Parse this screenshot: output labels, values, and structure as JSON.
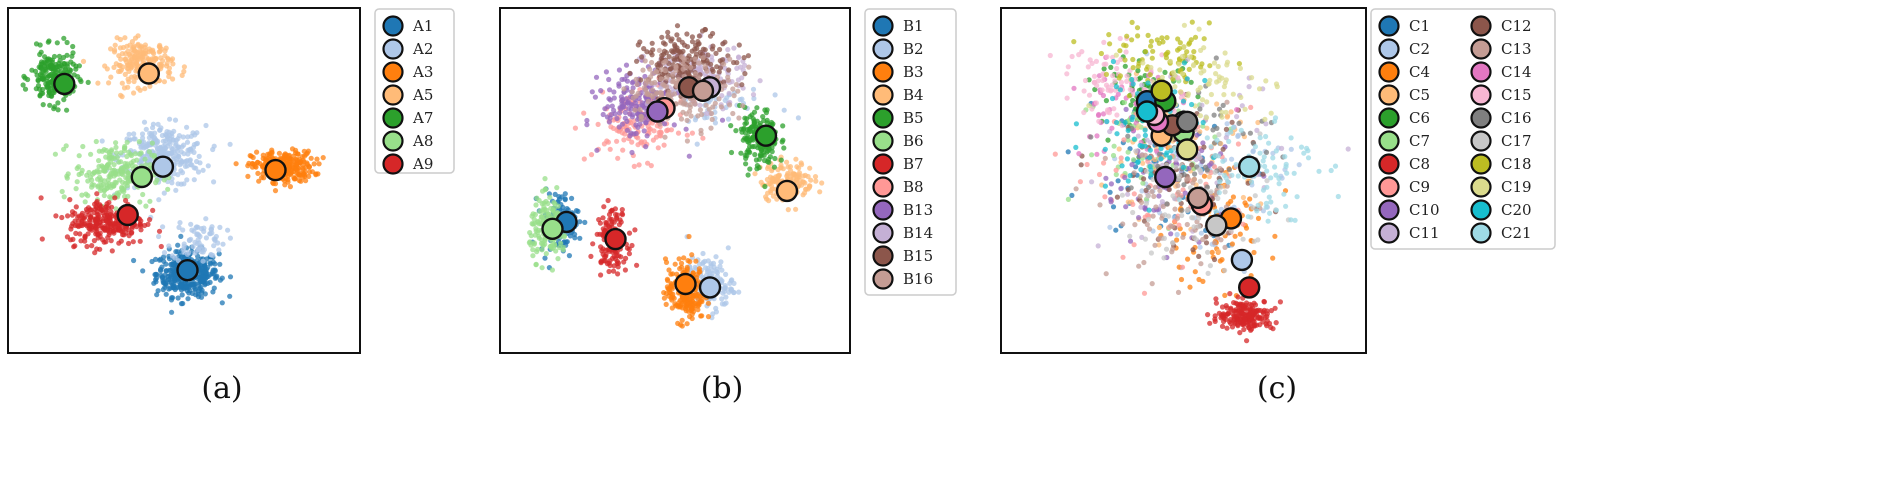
{
  "chart_data": [
    {
      "type": "scatter",
      "panel_label": "(a)",
      "title": "",
      "xlabel": "",
      "ylabel": "",
      "xlim": [
        0,
        100
      ],
      "ylim": [
        0,
        100
      ],
      "grid": false,
      "legend_position": "outside-right",
      "series": [
        {
          "name": "A1",
          "color": "#1f77b4",
          "centroid": [
            51,
            24
          ],
          "clusters": [
            {
              "center": [
                51,
                23
              ],
              "spread": [
                8,
                6
              ],
              "count": 380
            }
          ]
        },
        {
          "name": "A2",
          "color": "#aec7e8",
          "centroid": [
            44,
            54
          ],
          "clusters": [
            {
              "center": [
                44,
                57
              ],
              "spread": [
                11,
                8
              ],
              "count": 300
            },
            {
              "center": [
                54,
                33
              ],
              "spread": [
                7,
                6
              ],
              "count": 70
            }
          ]
        },
        {
          "name": "A3",
          "color": "#ff7f0e",
          "centroid": [
            76,
            53
          ],
          "clusters": [
            {
              "center": [
                78,
                54
              ],
              "spread": [
                8,
                4
              ],
              "count": 260
            }
          ]
        },
        {
          "name": "A5",
          "color": "#ffbb78",
          "centroid": [
            40,
            81
          ],
          "clusters": [
            {
              "center": [
                38,
                84
              ],
              "spread": [
                8,
                6
              ],
              "count": 200
            }
          ]
        },
        {
          "name": "A7",
          "color": "#2ca02c",
          "centroid": [
            16,
            78
          ],
          "clusters": [
            {
              "center": [
                13,
                80
              ],
              "spread": [
                6,
                7
              ],
              "count": 200
            }
          ]
        },
        {
          "name": "A8",
          "color": "#98df8a",
          "centroid": [
            38,
            51
          ],
          "clusters": [
            {
              "center": [
                30,
                52
              ],
              "spread": [
                10,
                8
              ],
              "count": 220
            }
          ]
        },
        {
          "name": "A9",
          "color": "#d62728",
          "centroid": [
            34,
            40
          ],
          "clusters": [
            {
              "center": [
                28,
                38
              ],
              "spread": [
                10,
                6
              ],
              "count": 260
            }
          ]
        }
      ]
    },
    {
      "type": "scatter",
      "panel_label": "(b)",
      "title": "",
      "xlabel": "",
      "ylabel": "",
      "xlim": [
        0,
        100
      ],
      "ylim": [
        0,
        100
      ],
      "grid": false,
      "legend_position": "outside-right",
      "series": [
        {
          "name": "B1",
          "color": "#1f77b4",
          "centroid": [
            19,
            38
          ],
          "clusters": [
            {
              "center": [
                17,
                38
              ],
              "spread": [
                5,
                8
              ],
              "count": 110
            }
          ]
        },
        {
          "name": "B2",
          "color": "#aec7e8",
          "centroid": [
            60,
            19
          ],
          "clusters": [
            {
              "center": [
                60,
                20
              ],
              "spread": [
                6,
                7
              ],
              "count": 140
            },
            {
              "center": [
                58,
                72
              ],
              "spread": [
                15,
                7
              ],
              "count": 60
            }
          ]
        },
        {
          "name": "B3",
          "color": "#ff7f0e",
          "centroid": [
            53,
            20
          ],
          "clusters": [
            {
              "center": [
                53,
                18
              ],
              "spread": [
                5,
                8
              ],
              "count": 220
            }
          ]
        },
        {
          "name": "B4",
          "color": "#ffbb78",
          "centroid": [
            82,
            47
          ],
          "clusters": [
            {
              "center": [
                82,
                50
              ],
              "spread": [
                7,
                5
              ],
              "count": 150
            }
          ]
        },
        {
          "name": "B5",
          "color": "#2ca02c",
          "centroid": [
            76,
            63
          ],
          "clusters": [
            {
              "center": [
                74,
                62
              ],
              "spread": [
                5,
                8
              ],
              "count": 170
            }
          ]
        },
        {
          "name": "B6",
          "color": "#98df8a",
          "centroid": [
            15,
            36
          ],
          "clusters": [
            {
              "center": [
                14,
                36
              ],
              "spread": [
                5,
                8
              ],
              "count": 170
            }
          ]
        },
        {
          "name": "B7",
          "color": "#d62728",
          "centroid": [
            33,
            33
          ],
          "clusters": [
            {
              "center": [
                32,
                33
              ],
              "spread": [
                4,
                8
              ],
              "count": 150
            }
          ]
        },
        {
          "name": "B8",
          "color": "#ff9896",
          "centroid": [
            47,
            71
          ],
          "clusters": [
            {
              "center": [
                40,
                66
              ],
              "spread": [
                12,
                9
              ],
              "count": 140
            }
          ]
        },
        {
          "name": "B13",
          "color": "#9467bd",
          "centroid": [
            45,
            70
          ],
          "clusters": [
            {
              "center": [
                40,
                72
              ],
              "spread": [
                10,
                9
              ],
              "count": 200
            }
          ]
        },
        {
          "name": "B14",
          "color": "#c5b0d5",
          "centroid": [
            60,
            77
          ],
          "clusters": [
            {
              "center": [
                56,
                80
              ],
              "spread": [
                13,
                8
              ],
              "count": 140
            }
          ]
        },
        {
          "name": "B15",
          "color": "#8c564b",
          "centroid": [
            54,
            77
          ],
          "clusters": [
            {
              "center": [
                54,
                84
              ],
              "spread": [
                12,
                8
              ],
              "count": 200
            }
          ]
        },
        {
          "name": "B16",
          "color": "#c49c94",
          "centroid": [
            58,
            76
          ],
          "clusters": [
            {
              "center": [
                52,
                76
              ],
              "spread": [
                14,
                9
              ],
              "count": 180
            }
          ]
        }
      ]
    },
    {
      "type": "scatter",
      "panel_label": "(c)",
      "title": "",
      "xlabel": "",
      "ylabel": "",
      "xlim": [
        0,
        100
      ],
      "ylim": [
        0,
        100
      ],
      "grid": false,
      "legend_position": "outside-right",
      "series": [
        {
          "name": "C1",
          "color": "#1f77b4",
          "centroid": [
            40,
            73
          ],
          "clusters": [
            {
              "center": [
                45,
                55
              ],
              "spread": [
                20,
                20
              ],
              "count": 60
            }
          ]
        },
        {
          "name": "C2",
          "color": "#aec7e8",
          "centroid": [
            66,
            27
          ],
          "clusters": [
            {
              "center": [
                55,
                50
              ],
              "spread": [
                22,
                22
              ],
              "count": 70
            }
          ]
        },
        {
          "name": "C4",
          "color": "#ff7f0e",
          "centroid": [
            63,
            39
          ],
          "clusters": [
            {
              "center": [
                58,
                36
              ],
              "spread": [
                15,
                15
              ],
              "count": 90
            }
          ]
        },
        {
          "name": "C5",
          "color": "#ffbb78",
          "centroid": [
            44,
            63
          ],
          "clusters": [
            {
              "center": [
                48,
                55
              ],
              "spread": [
                20,
                18
              ],
              "count": 80
            }
          ]
        },
        {
          "name": "C6",
          "color": "#2ca02c",
          "centroid": [
            45,
            73
          ],
          "clusters": [
            {
              "center": [
                40,
                75
              ],
              "spread": [
                12,
                10
              ],
              "count": 70
            }
          ]
        },
        {
          "name": "C7",
          "color": "#98df8a",
          "centroid": [
            50,
            64
          ],
          "clusters": [
            {
              "center": [
                42,
                62
              ],
              "spread": [
                18,
                18
              ],
              "count": 70
            }
          ]
        },
        {
          "name": "C8",
          "color": "#d62728",
          "centroid": [
            68,
            19
          ],
          "clusters": [
            {
              "center": [
                67,
                11
              ],
              "spread": [
                7,
                4
              ],
              "count": 190
            }
          ]
        },
        {
          "name": "C9",
          "color": "#ff9896",
          "centroid": [
            55,
            43
          ],
          "clusters": [
            {
              "center": [
                48,
                48
              ],
              "spread": [
                20,
                20
              ],
              "count": 60
            }
          ]
        },
        {
          "name": "C10",
          "color": "#9467bd",
          "centroid": [
            45,
            51
          ],
          "clusters": [
            {
              "center": [
                45,
                52
              ],
              "spread": [
                18,
                18
              ],
              "count": 60
            }
          ]
        },
        {
          "name": "C11",
          "color": "#c5b0d5",
          "centroid": [
            50,
            67
          ],
          "clusters": [
            {
              "center": [
                52,
                55
              ],
              "spread": [
                22,
                22
              ],
              "count": 60
            }
          ]
        },
        {
          "name": "C12",
          "color": "#8c564b",
          "centroid": [
            47,
            66
          ],
          "clusters": [
            {
              "center": [
                50,
                50
              ],
              "spread": [
                20,
                20
              ],
              "count": 70
            }
          ]
        },
        {
          "name": "C13",
          "color": "#c49c94",
          "centroid": [
            54,
            45
          ],
          "clusters": [
            {
              "center": [
                50,
                40
              ],
              "spread": [
                18,
                18
              ],
              "count": 90
            }
          ]
        },
        {
          "name": "C14",
          "color": "#e377c2",
          "centroid": [
            43,
            67
          ],
          "clusters": [
            {
              "center": [
                35,
                70
              ],
              "spread": [
                15,
                12
              ],
              "count": 60
            }
          ]
        },
        {
          "name": "C15",
          "color": "#f7b6d2",
          "centroid": [
            42,
            69
          ],
          "clusters": [
            {
              "center": [
                32,
                78
              ],
              "spread": [
                15,
                10
              ],
              "count": 80
            }
          ]
        },
        {
          "name": "C16",
          "color": "#7f7f7f",
          "centroid": [
            51,
            67
          ],
          "clusters": [
            {
              "center": [
                55,
                60
              ],
              "spread": [
                18,
                18
              ],
              "count": 60
            }
          ]
        },
        {
          "name": "C17",
          "color": "#c7c7c7",
          "centroid": [
            59,
            37
          ],
          "clusters": [
            {
              "center": [
                55,
                45
              ],
              "spread": [
                20,
                20
              ],
              "count": 70
            }
          ]
        },
        {
          "name": "C18",
          "color": "#bcbd22",
          "centroid": [
            44,
            76
          ],
          "clusters": [
            {
              "center": [
                45,
                85
              ],
              "spread": [
                15,
                8
              ],
              "count": 80
            }
          ]
        },
        {
          "name": "C19",
          "color": "#dbdb8d",
          "centroid": [
            51,
            59
          ],
          "clusters": [
            {
              "center": [
                55,
                78
              ],
              "spread": [
                18,
                12
              ],
              "count": 80
            }
          ]
        },
        {
          "name": "C20",
          "color": "#17becf",
          "centroid": [
            40,
            70
          ],
          "clusters": [
            {
              "center": [
                40,
                65
              ],
              "spread": [
                15,
                15
              ],
              "count": 80
            }
          ]
        },
        {
          "name": "C21",
          "color": "#9edae5",
          "centroid": [
            68,
            54
          ],
          "clusters": [
            {
              "center": [
                70,
                55
              ],
              "spread": [
                15,
                15
              ],
              "count": 80
            }
          ]
        }
      ]
    }
  ]
}
